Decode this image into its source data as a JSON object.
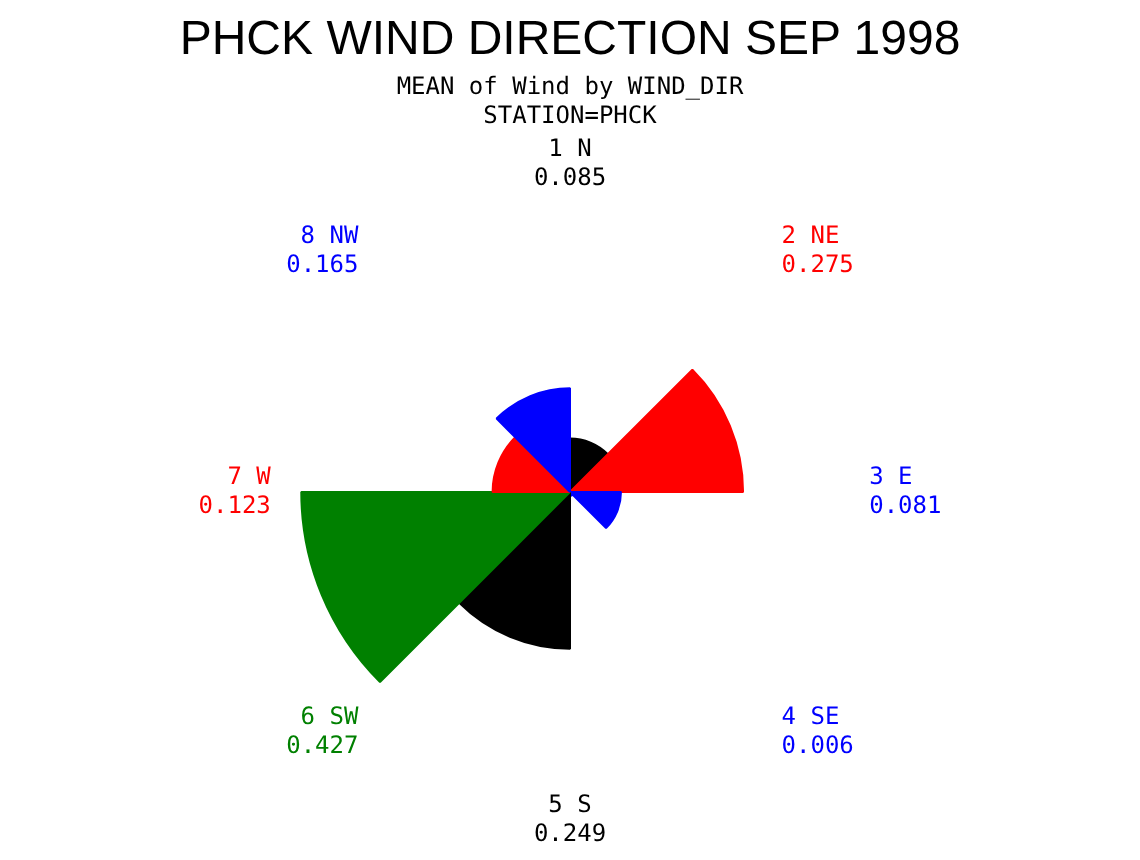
{
  "chart_data": {
    "type": "other",
    "title": "PHCK WIND DIRECTION SEP 1998",
    "subtitle": "MEAN of Wind by WIND_DIR",
    "annotations": [
      "STATION=PHCK"
    ],
    "categories": [
      "1 N",
      "2 NE",
      "3 E",
      "4 SE",
      "5 S",
      "6 SW",
      "7 W",
      "8 NW"
    ],
    "values": [
      0.085,
      0.275,
      0.081,
      0.006,
      0.249,
      0.427,
      0.123,
      0.165
    ],
    "colors": [
      "#000000",
      "#ff0000",
      "#0000ff",
      "#0000ff",
      "#000000",
      "#008000",
      "#ff0000",
      "#0000ff"
    ],
    "data_labels": true,
    "legend": false
  }
}
